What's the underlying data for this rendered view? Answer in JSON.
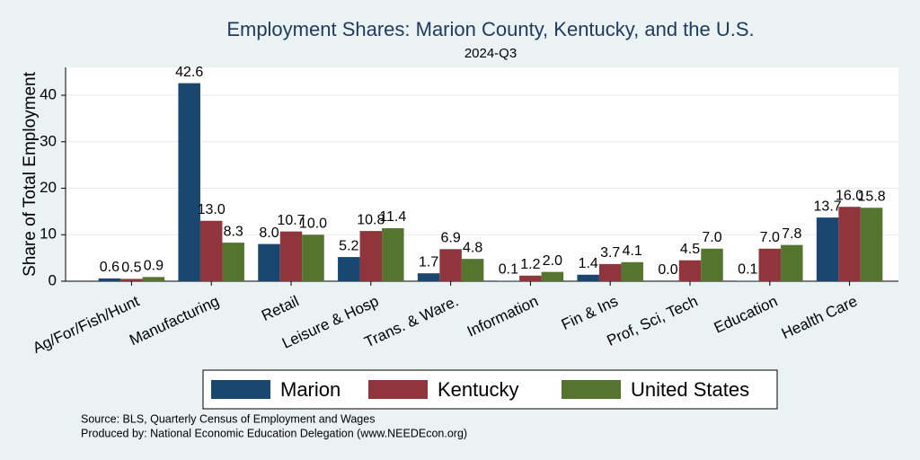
{
  "chart_data": {
    "type": "bar",
    "title": "Employment Shares: Marion County, Kentucky, and the U.S.",
    "subtitle": "2024-Q3",
    "y_label": "Share of Total Employment",
    "categories": [
      "Ag/For/Fish/Hunt",
      "Manufacturing",
      "Retail",
      "Leisure & Hosp",
      "Trans. & Ware.",
      "Information",
      "Fin & Ins",
      "Prof, Sci, Tech",
      "Education",
      "Health Care"
    ],
    "series": [
      {
        "name": "Marion",
        "color": "#1a476f",
        "values": [
          0.6,
          42.6,
          8,
          5.2,
          1.7,
          0.1,
          1.4,
          0,
          0.1,
          13.7
        ],
        "value_labels": [
          "0.6",
          "42.6",
          "8.0",
          "5.2",
          "1.7",
          "0.1",
          "1.4",
          "0.0",
          "0.1",
          "13.7"
        ]
      },
      {
        "name": "Kentucky",
        "color": "#90353b",
        "values": [
          0.5,
          13,
          10.7,
          10.8,
          6.9,
          1.2,
          3.7,
          4.5,
          7,
          16
        ],
        "value_labels": [
          "0.5",
          "13.0",
          "10.7",
          "10.8",
          "6.9",
          "1.2",
          "3.7",
          "4.5",
          "7.0",
          "16.0"
        ]
      },
      {
        "name": "United States",
        "color": "#55752f",
        "values": [
          0.9,
          8.3,
          10,
          11.4,
          4.8,
          2,
          4.1,
          7,
          7.8,
          15.8
        ],
        "value_labels": [
          "0.9",
          "8.3",
          "10.0",
          "11.4",
          "4.8",
          "2.0",
          "4.1",
          "7.0",
          "7.8",
          "15.8"
        ]
      }
    ],
    "ylim": [
      0,
      46
    ],
    "yticks": [
      0,
      10,
      20,
      30,
      40
    ],
    "grid": true,
    "notes": [
      "Source: BLS, Quarterly Census of Employment and Wages",
      "Produced by: National Economic Education Delegation (www.NEEDEcon.org)"
    ]
  }
}
